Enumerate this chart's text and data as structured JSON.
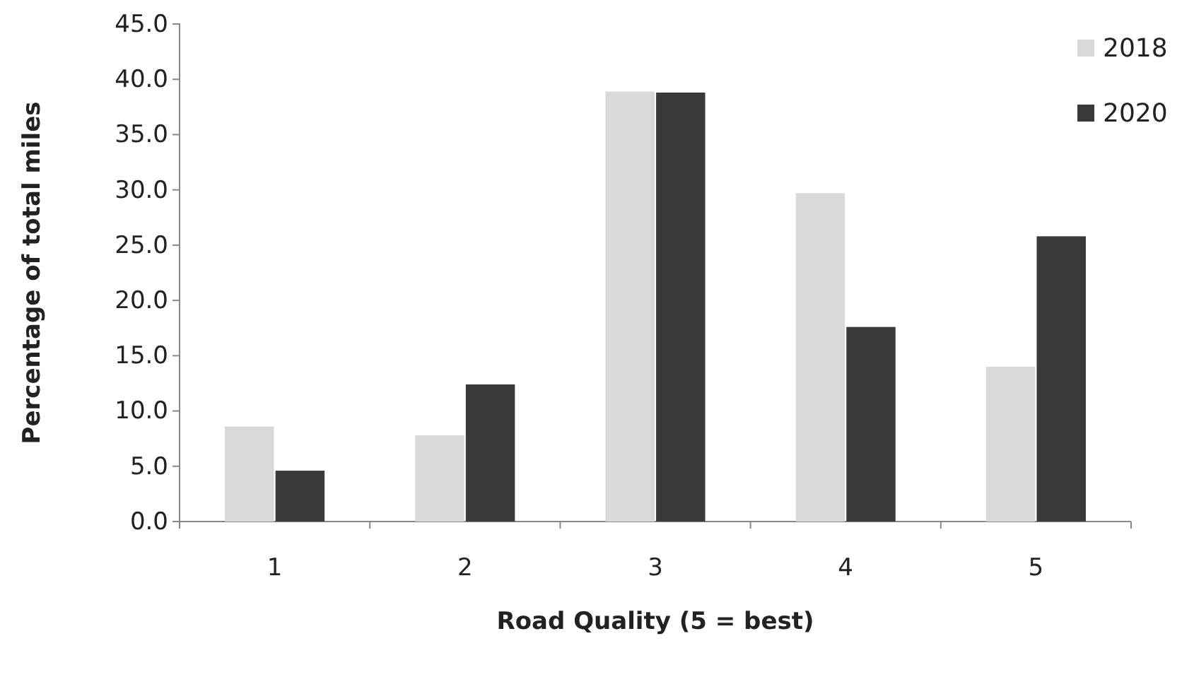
{
  "chart_data": {
    "type": "bar",
    "xlabel": "Road Quality (5 = best)",
    "ylabel": "Percentage of total miles",
    "categories": [
      "1",
      "2",
      "3",
      "4",
      "5"
    ],
    "series": [
      {
        "name": "2018",
        "color": "#d9d9d9",
        "values": [
          8.6,
          7.8,
          38.9,
          29.7,
          14.0
        ]
      },
      {
        "name": "2020",
        "color": "#3a3a3a",
        "values": [
          4.6,
          12.4,
          38.8,
          17.6,
          25.8
        ]
      }
    ],
    "ylim": [
      0,
      45
    ],
    "yticks": [
      {
        "value": 0,
        "label": "0.0"
      },
      {
        "value": 5,
        "label": "5.0"
      },
      {
        "value": 10,
        "label": "10.0"
      },
      {
        "value": 15,
        "label": "15.0"
      },
      {
        "value": 20,
        "label": "20.0"
      },
      {
        "value": 25,
        "label": "25.0"
      },
      {
        "value": 30,
        "label": "30.0"
      },
      {
        "value": 35,
        "label": "35.0"
      },
      {
        "value": 40,
        "label": "40.0"
      },
      {
        "value": 45,
        "label": "45.0"
      }
    ],
    "grid": false,
    "legend": "top right"
  }
}
